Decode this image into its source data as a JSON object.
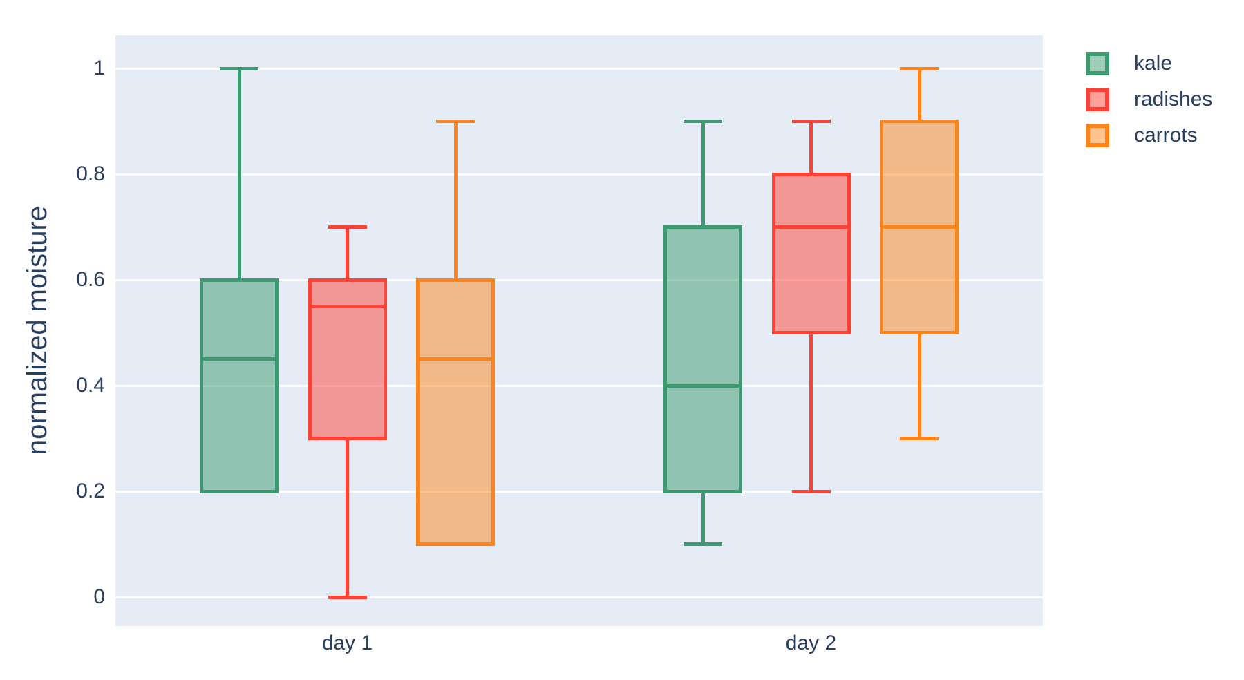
{
  "chart_data": {
    "type": "box",
    "boxmode": "group",
    "orientation": "vertical",
    "title": "",
    "xlabel": "",
    "ylabel": "normalized moisture",
    "categories": [
      "day 1",
      "day 2"
    ],
    "y_tick_values": [
      0,
      0.2,
      0.4,
      0.6,
      0.8,
      1
    ],
    "y_tick_labels": [
      "0",
      "0.2",
      "0.4",
      "0.6",
      "0.8",
      "1"
    ],
    "ylim": [
      -0.055,
      1.063
    ],
    "grid": true,
    "legend_position": "right-top-outside",
    "colors": {
      "page_bg": "#FFFFFF",
      "plot_bg": "#E5ECF6",
      "grid": "#FFFFFF",
      "text": "#2A3F5F"
    },
    "series": [
      {
        "name": "kale",
        "color": "#3D9970",
        "fill_opacity": 0.5,
        "boxes": [
          {
            "category": "day 1",
            "whisker_low": 0.2,
            "q1": 0.2,
            "median": 0.45,
            "q3": 0.6,
            "whisker_high": 1.0
          },
          {
            "category": "day 2",
            "whisker_low": 0.1,
            "q1": 0.2,
            "median": 0.4,
            "q3": 0.7,
            "whisker_high": 0.9
          }
        ]
      },
      {
        "name": "radishes",
        "color": "#FF4136",
        "fill_opacity": 0.5,
        "boxes": [
          {
            "category": "day 1",
            "whisker_low": 0.0,
            "q1": 0.3,
            "median": 0.55,
            "q3": 0.6,
            "whisker_high": 0.7
          },
          {
            "category": "day 2",
            "whisker_low": 0.2,
            "q1": 0.5,
            "median": 0.7,
            "q3": 0.8,
            "whisker_high": 0.9
          }
        ]
      },
      {
        "name": "carrots",
        "color": "#FF851B",
        "fill_opacity": 0.5,
        "boxes": [
          {
            "category": "day 1",
            "whisker_low": 0.1,
            "q1": 0.1,
            "median": 0.45,
            "q3": 0.6,
            "whisker_high": 0.9
          },
          {
            "category": "day 2",
            "whisker_low": 0.3,
            "q1": 0.5,
            "median": 0.7,
            "q3": 0.9,
            "whisker_high": 1.0
          }
        ]
      }
    ]
  }
}
